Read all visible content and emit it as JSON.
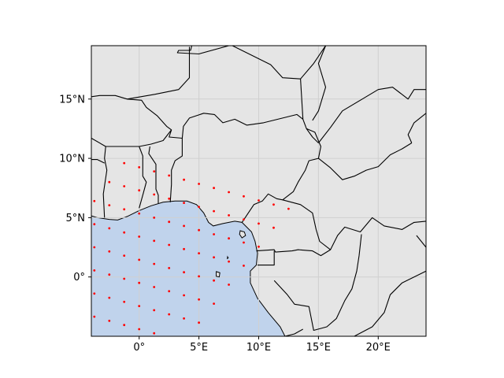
{
  "map": {
    "projection": "plate-carree",
    "extent": {
      "lon": [
        -4,
        24
      ],
      "lat": [
        -5,
        19.5
      ]
    },
    "colors": {
      "land": "#e5e5e5",
      "ocean": "#c0d3ec",
      "border": "#000000",
      "grid": "#d0d0d0",
      "point": "#ff0000"
    },
    "gridlines": true,
    "x_ticks": [
      {
        "value": 0,
        "label": "0°"
      },
      {
        "value": 5,
        "label": "5°E"
      },
      {
        "value": 10,
        "label": "10°E"
      },
      {
        "value": 15,
        "label": "15°E"
      },
      {
        "value": 20,
        "label": "20°E"
      }
    ],
    "y_ticks": [
      {
        "value": 0,
        "label": "0°"
      },
      {
        "value": 5,
        "label": "5°N"
      },
      {
        "value": 10,
        "label": "10°N"
      },
      {
        "value": 15,
        "label": "15°N"
      }
    ],
    "sample_grid": {
      "origin": [
        0,
        -0.5
      ],
      "u_step": [
        1.25,
        1.6
      ],
      "v_step": [
        1.25,
        -0.35
      ],
      "nu": 11,
      "nv": 12,
      "iu_start": -5,
      "iv_start": -6
    },
    "ocean_polygon": [
      [
        -4,
        5.15
      ],
      [
        -3.5,
        5.0
      ],
      [
        -2.5,
        4.85
      ],
      [
        -1.8,
        4.8
      ],
      [
        -1.0,
        5.1
      ],
      [
        0.0,
        5.6
      ],
      [
        1.0,
        6.0
      ],
      [
        2.0,
        6.3
      ],
      [
        3.0,
        6.4
      ],
      [
        4.0,
        6.4
      ],
      [
        4.8,
        6.1
      ],
      [
        5.4,
        5.4
      ],
      [
        5.8,
        4.6
      ],
      [
        6.2,
        4.3
      ],
      [
        7.0,
        4.5
      ],
      [
        8.0,
        4.7
      ],
      [
        8.6,
        4.6
      ],
      [
        9.4,
        3.8
      ],
      [
        9.7,
        3.0
      ],
      [
        9.9,
        2.0
      ],
      [
        9.8,
        1.0
      ],
      [
        9.3,
        0.5
      ],
      [
        9.3,
        -0.5
      ],
      [
        9.9,
        -1.8
      ],
      [
        10.8,
        -3.0
      ],
      [
        11.8,
        -4.2
      ],
      [
        12.2,
        -5.0
      ],
      [
        -4,
        -5
      ]
    ],
    "border_lines": [
      [
        [
          4.4,
          19.5
        ],
        [
          4.3,
          19.1
        ],
        [
          3.3,
          19.1
        ],
        [
          3.2,
          18.9
        ],
        [
          5.0,
          18.8
        ],
        [
          7.5,
          19.5
        ]
      ],
      [
        [
          -4,
          15.2
        ],
        [
          -3.3,
          15.3
        ],
        [
          -2.0,
          15.3
        ],
        [
          -1.0,
          15.0
        ],
        [
          0.2,
          14.9
        ],
        [
          0.6,
          14.3
        ],
        [
          1.5,
          13.6
        ],
        [
          2.3,
          12.7
        ],
        [
          2.7,
          12.4
        ],
        [
          2.5,
          11.8
        ],
        [
          3.6,
          11.7
        ]
      ],
      [
        [
          3.6,
          11.7
        ],
        [
          3.7,
          12.7
        ],
        [
          4.2,
          13.4
        ],
        [
          5.4,
          13.8
        ],
        [
          6.3,
          13.7
        ],
        [
          7.0,
          13.0
        ],
        [
          8.0,
          13.3
        ],
        [
          9.0,
          12.8
        ],
        [
          10.4,
          13.0
        ],
        [
          12.0,
          13.4
        ],
        [
          13.2,
          13.7
        ],
        [
          13.7,
          13.3
        ],
        [
          14.0,
          12.5
        ],
        [
          14.5,
          11.8
        ],
        [
          15.0,
          11.3
        ]
      ],
      [
        [
          4.2,
          19.4
        ],
        [
          4.2,
          16.8
        ],
        [
          3.3,
          15.8
        ],
        [
          1.3,
          15.4
        ],
        [
          -1.0,
          15.0
        ]
      ],
      [
        [
          7.8,
          19.5
        ],
        [
          11.0,
          17.9
        ],
        [
          12.0,
          16.8
        ],
        [
          13.5,
          16.7
        ],
        [
          14.6,
          18.0
        ],
        [
          15.6,
          19.5
        ]
      ],
      [
        [
          13.7,
          13.3
        ],
        [
          13.5,
          16.7
        ]
      ],
      [
        [
          14.0,
          12.5
        ],
        [
          14.7,
          12.2
        ],
        [
          15.2,
          11.0
        ],
        [
          15.0,
          10.0
        ],
        [
          14.2,
          9.8
        ],
        [
          13.9,
          9.0
        ],
        [
          13.3,
          8.0
        ],
        [
          12.9,
          7.2
        ],
        [
          12.0,
          6.5
        ],
        [
          11.5,
          6.6
        ],
        [
          10.8,
          7.0
        ],
        [
          10.3,
          6.4
        ],
        [
          9.6,
          6.1
        ],
        [
          9.0,
          5.2
        ],
        [
          8.6,
          4.6
        ]
      ],
      [
        [
          2.6,
          6.3
        ],
        [
          2.7,
          7.8
        ],
        [
          2.7,
          9.0
        ],
        [
          3.0,
          9.8
        ],
        [
          3.6,
          10.2
        ],
        [
          3.6,
          11.7
        ]
      ],
      [
        [
          1.6,
          6.2
        ],
        [
          1.6,
          6.9
        ],
        [
          1.4,
          7.4
        ],
        [
          1.4,
          9.5
        ],
        [
          0.8,
          10.4
        ],
        [
          0.9,
          11.0
        ]
      ],
      [
        [
          0.0,
          5.8
        ],
        [
          0.3,
          6.9
        ],
        [
          0.6,
          8.0
        ],
        [
          0.3,
          8.5
        ],
        [
          0.3,
          10.2
        ],
        [
          0.0,
          11.0
        ]
      ],
      [
        [
          -4,
          11.7
        ],
        [
          -2.8,
          11.0
        ],
        [
          -1.5,
          11.0
        ],
        [
          0.0,
          11.0
        ],
        [
          1.0,
          11.2
        ],
        [
          2.0,
          11.5
        ],
        [
          2.7,
          12.4
        ]
      ],
      [
        [
          -2.9,
          5.0
        ],
        [
          -3.0,
          7.0
        ],
        [
          -2.7,
          9.0
        ],
        [
          -2.9,
          10.0
        ],
        [
          -2.8,
          11.0
        ]
      ],
      [
        [
          -4,
          9.9
        ],
        [
          -3.5,
          9.9
        ],
        [
          -2.9,
          9.6
        ]
      ],
      [
        [
          15.0,
          11.3
        ],
        [
          16.0,
          12.6
        ],
        [
          17.0,
          14.0
        ],
        [
          18.5,
          14.9
        ],
        [
          20.0,
          15.8
        ],
        [
          21.2,
          16.0
        ],
        [
          22.5,
          15.0
        ],
        [
          23.0,
          15.8
        ],
        [
          24,
          15.8
        ]
      ],
      [
        [
          15.6,
          19.5
        ],
        [
          15.0,
          18.0
        ],
        [
          15.6,
          16.0
        ],
        [
          15.0,
          14.0
        ],
        [
          14.5,
          13.2
        ]
      ],
      [
        [
          15.0,
          10.0
        ],
        [
          16.0,
          9.2
        ],
        [
          17.0,
          8.2
        ],
        [
          18.0,
          8.5
        ],
        [
          19.0,
          9.0
        ],
        [
          20.0,
          9.3
        ],
        [
          21.0,
          10.3
        ],
        [
          22.0,
          10.8
        ],
        [
          22.8,
          11.3
        ]
      ],
      [
        [
          24,
          13.8
        ],
        [
          23.0,
          13.0
        ],
        [
          22.5,
          12.0
        ],
        [
          22.8,
          11.3
        ]
      ],
      [
        [
          12.0,
          6.5
        ],
        [
          13.5,
          6.1
        ],
        [
          14.5,
          5.4
        ],
        [
          14.8,
          4.0
        ],
        [
          15.1,
          3.0
        ],
        [
          16.0,
          2.3
        ],
        [
          16.6,
          3.5
        ],
        [
          17.2,
          4.2
        ],
        [
          18.5,
          3.8
        ],
        [
          19.5,
          5.0
        ],
        [
          20.5,
          4.3
        ],
        [
          22.0,
          4.0
        ],
        [
          23.0,
          4.6
        ],
        [
          24,
          4.7
        ]
      ],
      [
        [
          9.8,
          2.2
        ],
        [
          11.3,
          2.3
        ],
        [
          11.4,
          2.1
        ],
        [
          12.8,
          2.2
        ],
        [
          13.3,
          2.3
        ],
        [
          14.5,
          2.2
        ],
        [
          15.2,
          1.8
        ],
        [
          16.0,
          2.3
        ]
      ],
      [
        [
          9.9,
          1.0
        ],
        [
          11.3,
          1.0
        ],
        [
          11.3,
          2.2
        ]
      ],
      [
        [
          11.3,
          -0.3
        ],
        [
          12.4,
          -1.5
        ],
        [
          13.0,
          -2.3
        ],
        [
          14.2,
          -2.5
        ],
        [
          14.6,
          -4.5
        ],
        [
          15.7,
          -4.2
        ],
        [
          16.5,
          -3.5
        ],
        [
          17.2,
          -2.0
        ],
        [
          17.8,
          -1.0
        ],
        [
          18.2,
          0.5
        ],
        [
          18.4,
          1.8
        ],
        [
          18.6,
          3.6
        ]
      ],
      [
        [
          12.2,
          -5.0
        ],
        [
          13.0,
          -4.8
        ],
        [
          13.7,
          -4.4
        ]
      ],
      [
        [
          18.0,
          -5.0
        ],
        [
          19.5,
          -4.2
        ],
        [
          20.5,
          -3.0
        ],
        [
          21.0,
          -1.5
        ],
        [
          22.0,
          -0.5
        ],
        [
          24,
          0.5
        ]
      ],
      [
        [
          24,
          2.5
        ],
        [
          23.2,
          3.5
        ]
      ]
    ],
    "islands": [
      [
        [
          8.45,
          3.9
        ],
        [
          8.8,
          3.8
        ],
        [
          8.9,
          3.5
        ],
        [
          8.6,
          3.3
        ],
        [
          8.4,
          3.6
        ]
      ],
      [
        [
          6.45,
          0.45
        ],
        [
          6.75,
          0.35
        ],
        [
          6.7,
          0.0
        ],
        [
          6.45,
          0.05
        ]
      ],
      [
        [
          7.4,
          1.7
        ],
        [
          7.45,
          1.6
        ],
        [
          7.38,
          1.55
        ]
      ]
    ]
  }
}
